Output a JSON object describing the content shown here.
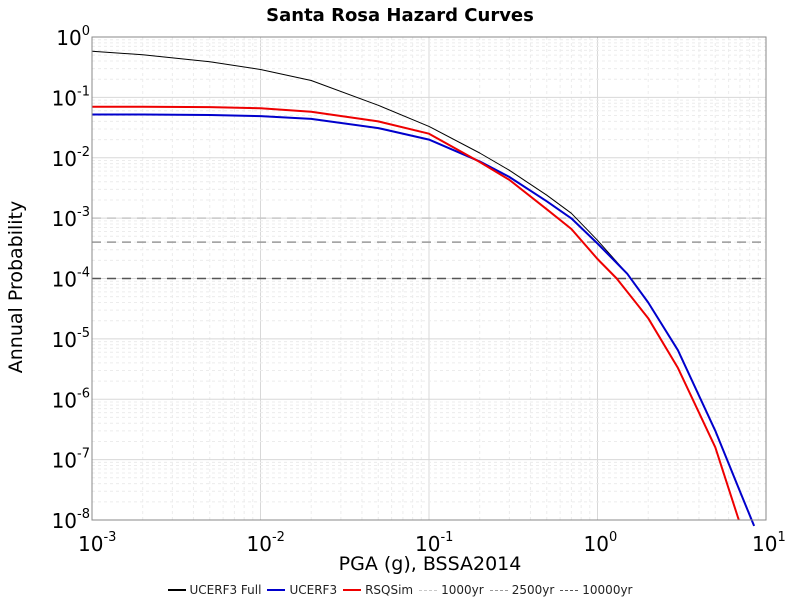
{
  "chart_data": {
    "type": "line",
    "title": "Santa Rosa Hazard Curves",
    "xlabel": "PGA (g), BSSA2014",
    "ylabel": "Annual Probability",
    "x_scale": "log",
    "y_scale": "log",
    "xlim": [
      0.001,
      10
    ],
    "ylim": [
      1e-08,
      1
    ],
    "x_tick_labels": [
      {
        "base": "10",
        "exp": "-3"
      },
      {
        "base": "10",
        "exp": "-2"
      },
      {
        "base": "10",
        "exp": "-1"
      },
      {
        "base": "10",
        "exp": "0"
      },
      {
        "base": "10",
        "exp": "1"
      }
    ],
    "y_tick_labels": [
      {
        "base": "10",
        "exp": "0"
      },
      {
        "base": "10",
        "exp": "-1"
      },
      {
        "base": "10",
        "exp": "-2"
      },
      {
        "base": "10",
        "exp": "-3"
      },
      {
        "base": "10",
        "exp": "-4"
      },
      {
        "base": "10",
        "exp": "-5"
      },
      {
        "base": "10",
        "exp": "-6"
      },
      {
        "base": "10",
        "exp": "-7"
      },
      {
        "base": "10",
        "exp": "-8"
      }
    ],
    "grid": true,
    "legend_position": "bottom",
    "series": [
      {
        "name": "UCERF3 Full",
        "color": "#000000",
        "x": [
          0.001,
          0.002,
          0.005,
          0.01,
          0.02,
          0.05,
          0.1,
          0.2,
          0.3,
          0.5,
          0.7,
          1.0,
          1.5,
          2.0,
          3.0,
          5.0,
          7.0,
          8.5
        ],
        "y": [
          0.58,
          0.51,
          0.39,
          0.29,
          0.19,
          0.074,
          0.033,
          0.012,
          0.0062,
          0.0024,
          0.0012,
          0.00043,
          0.00012,
          4e-05,
          6.5e-06,
          3e-07,
          3e-08,
          8e-09
        ]
      },
      {
        "name": "UCERF3",
        "color": "#0000cc",
        "x": [
          0.001,
          0.002,
          0.005,
          0.01,
          0.02,
          0.05,
          0.1,
          0.2,
          0.3,
          0.5,
          0.7,
          1.0,
          1.5,
          2.0,
          3.0,
          5.0,
          7.0,
          8.5
        ],
        "y": [
          0.052,
          0.052,
          0.051,
          0.049,
          0.044,
          0.031,
          0.02,
          0.0087,
          0.0048,
          0.0019,
          0.00099,
          0.00038,
          0.00012,
          4e-05,
          6.5e-06,
          3e-07,
          3e-08,
          8e-09
        ]
      },
      {
        "name": "RSQSim",
        "color": "#ee0000",
        "x": [
          0.001,
          0.002,
          0.005,
          0.01,
          0.02,
          0.05,
          0.1,
          0.2,
          0.3,
          0.5,
          0.7,
          1.0,
          1.3,
          2.0,
          3.0,
          5.0,
          6.9
        ],
        "y": [
          0.07,
          0.07,
          0.069,
          0.066,
          0.058,
          0.04,
          0.025,
          0.0085,
          0.0043,
          0.0014,
          0.00066,
          0.00021,
          0.0001,
          2.2e-05,
          3.3e-06,
          1.6e-07,
          1e-08
        ]
      },
      {
        "name": "1000yr",
        "color": "#c8c8c8",
        "style": "dashed",
        "y_const": 0.001
      },
      {
        "name": "2500yr",
        "color": "#999999",
        "style": "dashed",
        "y_const": 0.0004
      },
      {
        "name": "10000yr",
        "color": "#555555",
        "style": "dashed",
        "y_const": 0.0001
      }
    ]
  }
}
